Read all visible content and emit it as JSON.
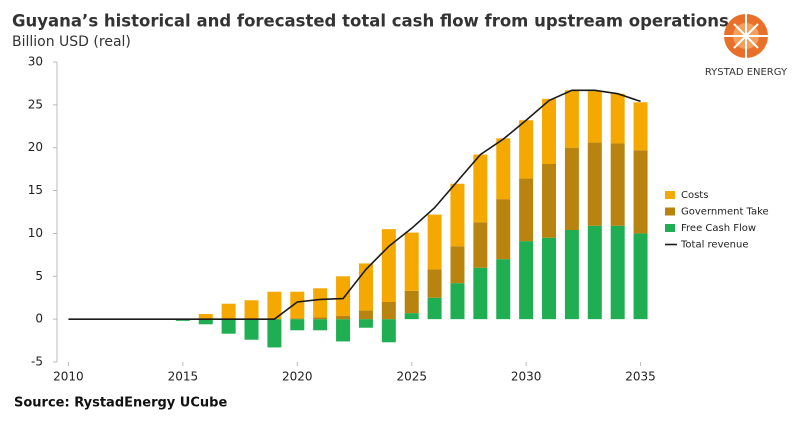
{
  "chart_data": {
    "type": "bar",
    "title": "Guyana’s historical and forecasted total cash flow from upstream operations",
    "subtitle": "Billion USD (real)",
    "source": "Source: RystadEnergy UCube",
    "logo": "RYSTAD ENERGY",
    "stacked": true,
    "x": [
      2010,
      2011,
      2012,
      2013,
      2014,
      2015,
      2016,
      2017,
      2018,
      2019,
      2020,
      2021,
      2022,
      2023,
      2024,
      2025,
      2026,
      2027,
      2028,
      2029,
      2030,
      2031,
      2032,
      2033,
      2034,
      2035
    ],
    "series": [
      {
        "name": "Costs",
        "type": "bar",
        "color": "#f5a800",
        "values": [
          null,
          null,
          null,
          null,
          null,
          0,
          0.6,
          1.8,
          2.2,
          3.2,
          3.1,
          3.4,
          4.6,
          5.5,
          8.5,
          6.8,
          6.4,
          7.3,
          7.9,
          7.1,
          6.8,
          7.6,
          6.7,
          6.0,
          5.8,
          5.6
        ]
      },
      {
        "name": "Government Take",
        "type": "bar",
        "color": "#b9830f",
        "values": [
          null,
          null,
          null,
          null,
          null,
          0,
          0,
          0,
          0,
          0,
          0.1,
          0.2,
          0.4,
          1.0,
          2.0,
          2.6,
          3.3,
          4.3,
          5.3,
          7.0,
          7.3,
          8.6,
          9.6,
          9.7,
          9.6,
          9.7
        ]
      },
      {
        "name": "Free Cash Flow",
        "type": "bar",
        "color": "#1fae52",
        "values": [
          null,
          null,
          null,
          null,
          null,
          -0.2,
          -0.6,
          -1.7,
          -2.4,
          -3.3,
          -1.3,
          -1.3,
          -2.6,
          -1.0,
          -2.7,
          0.7,
          2.5,
          4.2,
          6.0,
          7.0,
          9.1,
          9.5,
          10.4,
          10.9,
          10.9,
          10.0
        ]
      },
      {
        "name": "Total revenue",
        "type": "line",
        "color": "#1a1a1a",
        "values": [
          0,
          0,
          0,
          0,
          0,
          0,
          0,
          0,
          0,
          0,
          2.0,
          2.3,
          2.4,
          5.8,
          8.5,
          10.6,
          13.0,
          16.1,
          19.2,
          21.0,
          23.2,
          25.5,
          26.7,
          26.7,
          26.3,
          25.4
        ]
      }
    ],
    "xlim": [
      2009.5,
      2035.5
    ],
    "xticks": [
      2010,
      2015,
      2020,
      2025,
      2030,
      2035
    ],
    "ylim": [
      -5,
      30
    ],
    "yticks": [
      -5,
      0,
      5,
      10,
      15,
      20,
      25,
      30
    ],
    "grid": false,
    "legend": "right"
  }
}
